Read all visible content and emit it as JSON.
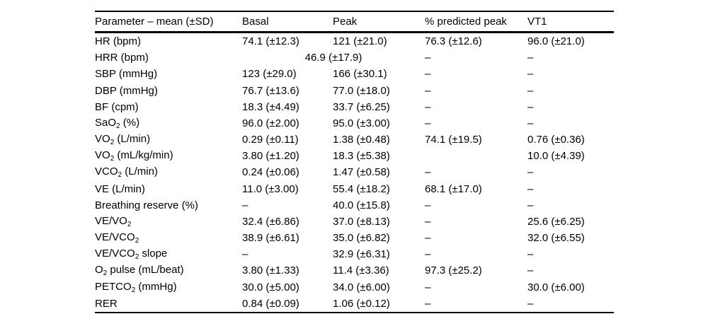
{
  "page": {
    "background_color": "#ffffff",
    "text_color": "#000000",
    "rule_color": "#000000"
  },
  "table": {
    "columns": [
      {
        "label": "Parameter – mean (±SD)"
      },
      {
        "label": "Basal"
      },
      {
        "label": "Peak"
      },
      {
        "label": "% predicted peak"
      },
      {
        "label": "VT1"
      }
    ],
    "rows": [
      {
        "param": {
          "pre": "HR (bpm)",
          "sub": "",
          "post": ""
        },
        "basal": "74.1 (±12.3)",
        "peak": "121 (±21.0)",
        "pred": "76.3 (±12.6)",
        "vt1": "96.0 (±21.0)"
      },
      {
        "param": {
          "pre": "HRR (bpm)",
          "sub": "",
          "post": ""
        },
        "combined": "46.9 (±17.9)",
        "pred": "–",
        "vt1": "–"
      },
      {
        "param": {
          "pre": "SBP (mmHg)",
          "sub": "",
          "post": ""
        },
        "basal": "123 (±29.0)",
        "peak": "166 (±30.1)",
        "pred": "–",
        "vt1": "–"
      },
      {
        "param": {
          "pre": "DBP (mmHg)",
          "sub": "",
          "post": ""
        },
        "basal": "76.7 (±13.6)",
        "peak": "77.0 (±18.0)",
        "pred": "–",
        "vt1": "–"
      },
      {
        "param": {
          "pre": "BF (cpm)",
          "sub": "",
          "post": ""
        },
        "basal": "18.3 (±4.49)",
        "peak": "33.7 (±6.25)",
        "pred": "–",
        "vt1": "–"
      },
      {
        "param": {
          "pre": "SaO",
          "sub": "2",
          "post": " (%)"
        },
        "basal": "96.0 (±2.00)",
        "peak": "95.0 (±3.00)",
        "pred": "–",
        "vt1": "–"
      },
      {
        "param": {
          "pre": "VO",
          "sub": "2",
          "post": " (L/min)"
        },
        "basal": "0.29 (±0.11)",
        "peak": "1.38 (±0.48)",
        "pred": "74.1 (±19.5)",
        "vt1": "0.76 (±0.36)"
      },
      {
        "param": {
          "pre": "VO",
          "sub": "2",
          "post": " (mL/kg/min)"
        },
        "basal": "3.80 (±1.20)",
        "peak": "18.3 (±5.38)",
        "pred": "",
        "vt1": "10.0 (±4.39)"
      },
      {
        "param": {
          "pre": "VCO",
          "sub": "2",
          "post": " (L/min)"
        },
        "basal": "0.24 (±0.06)",
        "peak": "1.47 (±0.58)",
        "pred": "–",
        "vt1": "–"
      },
      {
        "param": {
          "pre": "VE (L/min)",
          "sub": "",
          "post": ""
        },
        "basal": "11.0 (±3.00)",
        "peak": "55.4 (±18.2)",
        "pred": "68.1 (±17.0)",
        "vt1": "–"
      },
      {
        "param": {
          "pre": "Breathing reserve (%)",
          "sub": "",
          "post": ""
        },
        "basal": "–",
        "peak": "40.0 (±15.8)",
        "pred": "–",
        "vt1": "–"
      },
      {
        "param": {
          "pre": "VE/VO",
          "sub": "2",
          "post": ""
        },
        "basal": "32.4 (±6.86)",
        "peak": "37.0 (±8.13)",
        "pred": "–",
        "vt1": "25.6 (±6.25)"
      },
      {
        "param": {
          "pre": "VE/VCO",
          "sub": "2",
          "post": ""
        },
        "basal": "38.9 (±6.61)",
        "peak": "35.0 (±6.82)",
        "pred": "–",
        "vt1": "32.0 (±6.55)"
      },
      {
        "param": {
          "pre": "VE/VCO",
          "sub": "2",
          "post": " slope"
        },
        "basal": "–",
        "peak": "32.9 (±6.31)",
        "pred": "–",
        "vt1": "–"
      },
      {
        "param": {
          "pre": "O",
          "sub": "2",
          "post": " pulse (mL/beat)"
        },
        "basal": "3.80 (±1.33)",
        "peak": "11.4 (±3.36)",
        "pred": "97.3 (±25.2)",
        "vt1": "–"
      },
      {
        "param": {
          "pre": "PETCO",
          "sub": "2",
          "post": " (mmHg)"
        },
        "basal": "30.0 (±5.00)",
        "peak": "34.0 (±6.00)",
        "pred": "–",
        "vt1": "30.0 (±6.00)"
      },
      {
        "param": {
          "pre": "RER",
          "sub": "",
          "post": ""
        },
        "basal": "0.84 (±0.09)",
        "peak": "1.06 (±0.12)",
        "pred": "–",
        "vt1": "–"
      }
    ]
  }
}
